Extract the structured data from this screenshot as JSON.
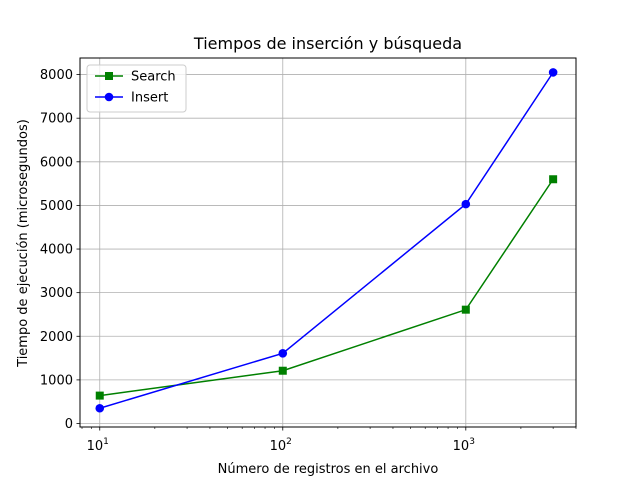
{
  "chart_data": {
    "type": "line",
    "title": "Tiempos de inserción y búsqueda",
    "xlabel": "Número de registros en el archivo",
    "ylabel": "Tiempo de ejecución (microsegundos)",
    "x_scale": "log",
    "xlim": [
      7.8,
      4000
    ],
    "ylim": [
      -80,
      8380
    ],
    "x_ticks": [
      {
        "value": 10,
        "base": "10",
        "exp": "1"
      },
      {
        "value": 100,
        "base": "10",
        "exp": "2"
      },
      {
        "value": 1000,
        "base": "10",
        "exp": "3"
      }
    ],
    "y_ticks": [
      {
        "value": 0,
        "label": "0"
      },
      {
        "value": 1000,
        "label": "1000"
      },
      {
        "value": 2000,
        "label": "2000"
      },
      {
        "value": 3000,
        "label": "3000"
      },
      {
        "value": 4000,
        "label": "4000"
      },
      {
        "value": 5000,
        "label": "5000"
      },
      {
        "value": 6000,
        "label": "6000"
      },
      {
        "value": 7000,
        "label": "7000"
      },
      {
        "value": 8000,
        "label": "8000"
      }
    ],
    "grid": true,
    "legend_position": "top-left",
    "x": [
      10,
      100,
      1000,
      3000
    ],
    "series": [
      {
        "name": "Search",
        "color": "#008000",
        "marker": "square",
        "values": [
          640,
          1210,
          2610,
          5600
        ]
      },
      {
        "name": "Insert",
        "color": "#0000ff",
        "marker": "circle",
        "values": [
          350,
          1610,
          5030,
          8050
        ]
      }
    ]
  }
}
